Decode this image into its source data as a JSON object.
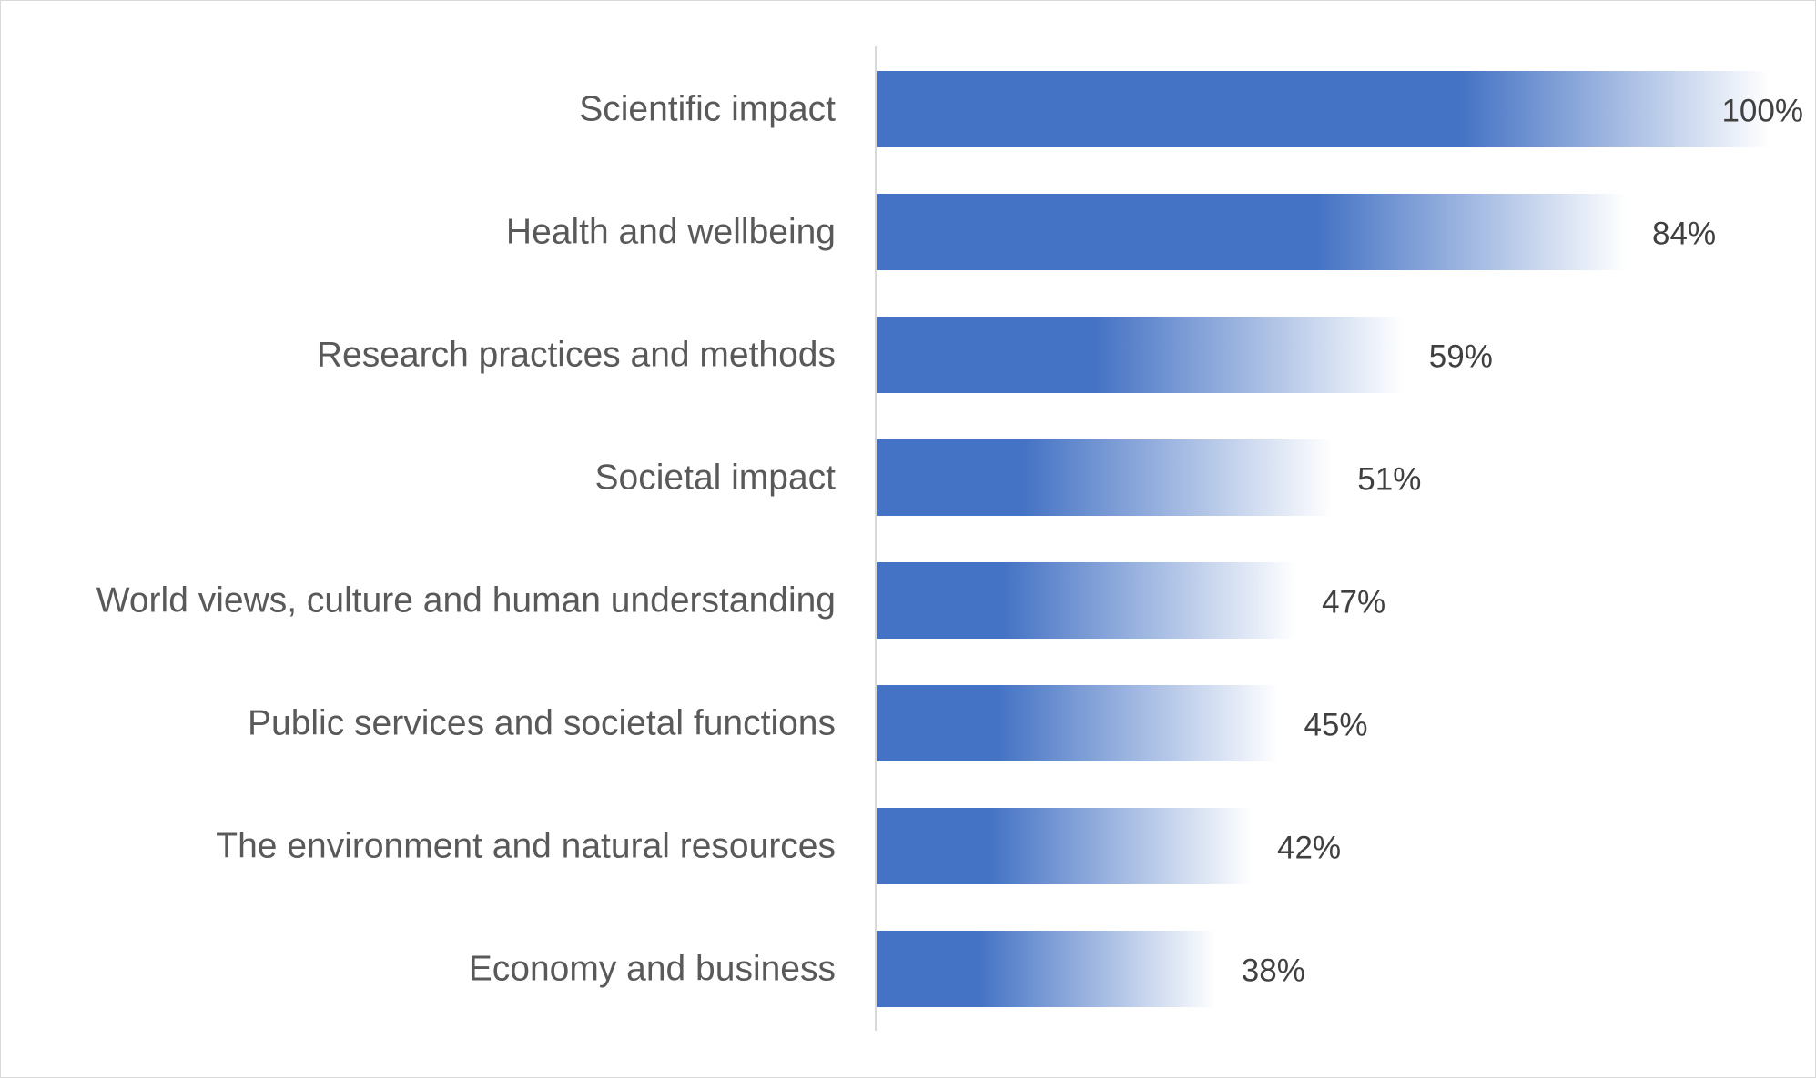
{
  "chart_data": {
    "type": "bar",
    "orientation": "horizontal",
    "title": "",
    "xlabel": "",
    "ylabel": "",
    "categories": [
      "Scientific impact",
      "Health and wellbeing",
      "Research practices and methods",
      "Societal impact",
      "World views, culture and human understanding",
      "Public services and societal functions",
      "The environment and natural resources",
      "Economy and business"
    ],
    "values": [
      100,
      84,
      59,
      51,
      47,
      45,
      42,
      38
    ],
    "value_labels": [
      "100%",
      "84%",
      "59%",
      "51%",
      "47%",
      "45%",
      "42%",
      "38%"
    ],
    "xlim": [
      0,
      100
    ],
    "unit": "%",
    "grid": false,
    "legend": "none",
    "bar_fill": "gradient",
    "colors": {
      "bar_solid": "#4472C4",
      "bar_fade": "#ffffff",
      "axis_line": "#d9d9d9",
      "category_text": "#595959",
      "value_text": "#404040"
    }
  }
}
